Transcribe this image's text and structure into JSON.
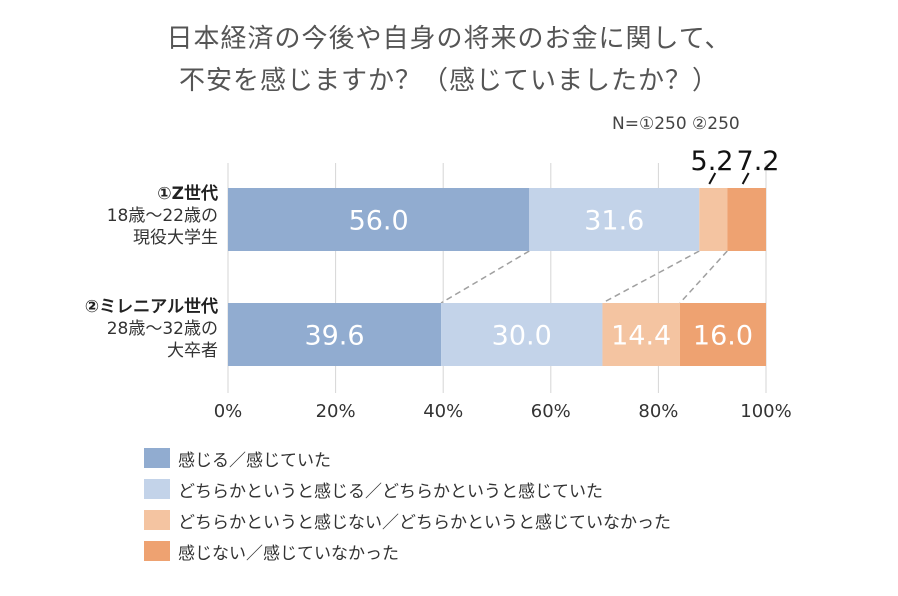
{
  "title": {
    "line1": "日本経済の今後や自身の将来のお金に関して、",
    "line2": "不安を感じますか？（感じていましたか？）"
  },
  "n_label": "N=①250 ②250",
  "categories": [
    {
      "name": "①Z世代",
      "sub1": "18歳〜22歳の",
      "sub2": "現役大学生"
    },
    {
      "name": "②ミレニアル世代",
      "sub1": "28歳〜32歳の",
      "sub2": "大卒者"
    }
  ],
  "colors": [
    "#91acd0",
    "#c3d3e9",
    "#f4c4a1",
    "#eea271"
  ],
  "legend": [
    "感じる／感じていた",
    "どちらかというと感じる／どちらかというと感じていた",
    "どちらかというと感じない／どちらかというと感じていなかった",
    "感じない／感じていなかった"
  ],
  "chart_data": {
    "type": "bar",
    "orientation": "horizontal",
    "stacked": true,
    "categories": [
      "①Z世代 18歳〜22歳の現役大学生",
      "②ミレニアル世代 28歳〜32歳の大卒者"
    ],
    "series": [
      {
        "name": "感じる／感じていた",
        "values": [
          56.0,
          39.6
        ]
      },
      {
        "name": "どちらかというと感じる／どちらかというと感じていた",
        "values": [
          31.6,
          30.0
        ]
      },
      {
        "name": "どちらかというと感じない／どちらかというと感じていなかった",
        "values": [
          5.2,
          14.4
        ]
      },
      {
        "name": "感じない／感じていなかった",
        "values": [
          7.2,
          16.0
        ]
      }
    ],
    "x_ticks": [
      "0%",
      "20%",
      "40%",
      "60%",
      "80%",
      "100%"
    ],
    "xlim": [
      0,
      100
    ],
    "grid": true,
    "legend_position": "bottom"
  }
}
